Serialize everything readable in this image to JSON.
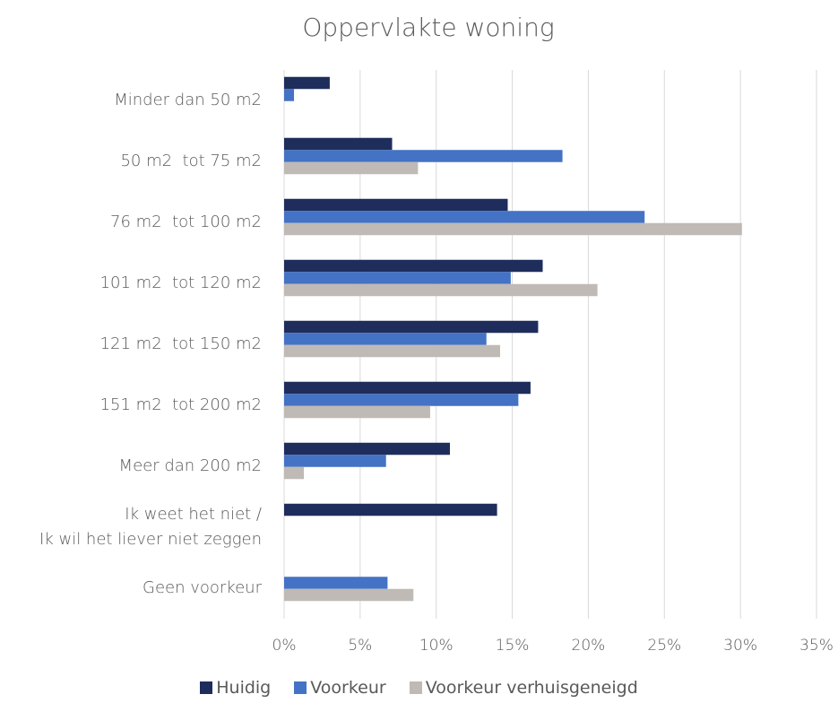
{
  "chart_data": {
    "type": "bar",
    "orientation": "horizontal",
    "title": "Oppervlakte woning",
    "categories": [
      "Minder dan 50 m2",
      "50 m2  tot 75 m2",
      "76 m2  tot 100 m2",
      "101 m2  tot 120 m2",
      "121 m2  tot 150 m2",
      "151 m2  tot 200 m2",
      "Meer dan 200 m2",
      "Ik weet het niet /\nIk wil het liever niet zeggen",
      "Geen voorkeur"
    ],
    "series": [
      {
        "name": "Huidig",
        "color": "#1f2d5c",
        "values": [
          3.0,
          7.1,
          14.7,
          17.0,
          16.7,
          16.2,
          10.9,
          14.0,
          0
        ]
      },
      {
        "name": "Voorkeur",
        "color": "#4472c4",
        "values": [
          0.65,
          18.3,
          23.7,
          14.9,
          13.3,
          15.4,
          6.7,
          0,
          6.8
        ]
      },
      {
        "name": "Voorkeur verhuisgeneigd",
        "color": "#bfbab5",
        "values": [
          0,
          8.8,
          30.1,
          20.6,
          14.2,
          9.6,
          1.3,
          0,
          8.5
        ]
      }
    ],
    "xlim": [
      0,
      35
    ],
    "xticks": [
      {
        "value": 0,
        "label": "0%"
      },
      {
        "value": 5,
        "label": "5%"
      },
      {
        "value": 10,
        "label": "10%"
      },
      {
        "value": 15,
        "label": "15%"
      },
      {
        "value": 20,
        "label": "20%"
      },
      {
        "value": 25,
        "label": "25%"
      },
      {
        "value": 30,
        "label": "30%"
      },
      {
        "value": 35,
        "label": "35%"
      }
    ],
    "grid": true,
    "legend": "bottom"
  }
}
